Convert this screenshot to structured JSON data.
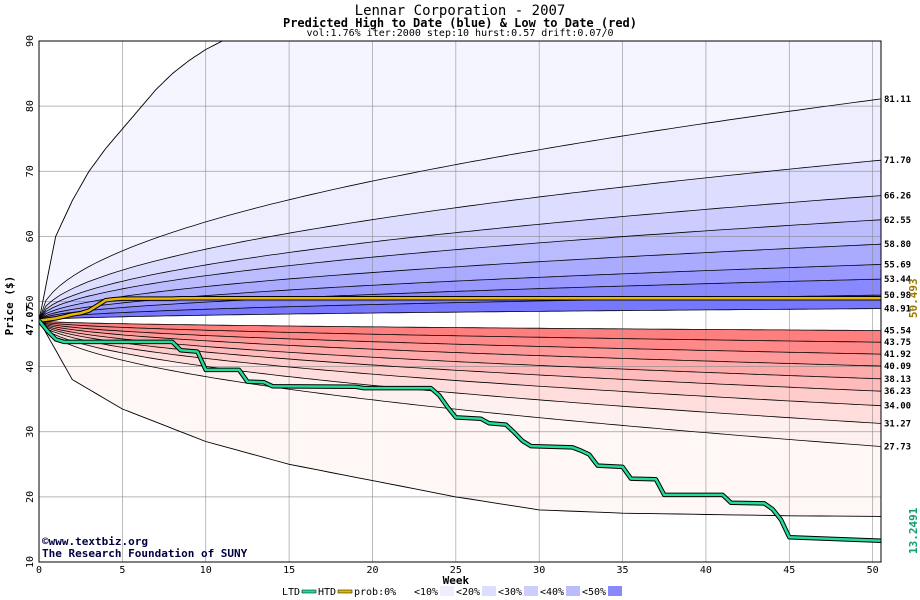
{
  "title": "Lennar Corporation - 2007",
  "subtitle": "Predicted High to Date (blue) &  Low to Date (red)",
  "params": "vol:1.76% iter:2000 step:10 hurst:0.57 drift:0.07/0",
  "credit_line1": "©www.textbiz.org",
  "credit_line2": "The Research Foundation of SUNY",
  "chart_data": {
    "type": "area",
    "xlabel": "Week",
    "ylabel": "Price ($)",
    "xlim": [
      0,
      50.5
    ],
    "ylim": [
      10,
      90
    ],
    "xticks": [
      0,
      5,
      10,
      15,
      20,
      25,
      30,
      35,
      40,
      45,
      50
    ],
    "yticks": [
      10,
      20,
      30,
      40,
      50,
      60,
      70,
      80,
      90
    ],
    "grid": true,
    "start_price": 47.07,
    "start_price_label": "47.07",
    "current_high_label": "50.493",
    "current_low_label": "13.2491",
    "upper_bands": [
      {
        "end": 81.11,
        "label": "81.11"
      },
      {
        "end": 71.7,
        "label": "71.70"
      },
      {
        "end": 66.26,
        "label": "66.26"
      },
      {
        "end": 62.55,
        "label": "62.55"
      },
      {
        "end": 58.8,
        "label": "58.80"
      },
      {
        "end": 55.69,
        "label": "55.69"
      },
      {
        "end": 53.44,
        "label": "53.44"
      },
      {
        "end": 50.98,
        "label": "50.98"
      },
      {
        "end": 48.91,
        "label": "48.91"
      }
    ],
    "lower_bands": [
      {
        "end": 45.54,
        "label": "45.54"
      },
      {
        "end": 43.75,
        "label": "43.75"
      },
      {
        "end": 41.92,
        "label": "41.92"
      },
      {
        "end": 40.09,
        "label": "40.09"
      },
      {
        "end": 38.13,
        "label": "38.13"
      },
      {
        "end": 36.23,
        "label": "36.23"
      },
      {
        "end": 34.0,
        "label": "34.00"
      },
      {
        "end": 31.27,
        "label": "31.27"
      },
      {
        "end": 27.73,
        "label": "27.73"
      }
    ],
    "extreme_high_curve": {
      "x": [
        0,
        1,
        2,
        3,
        4,
        5,
        6,
        7,
        8,
        9,
        10,
        11
      ],
      "y": [
        47.07,
        60,
        65.5,
        70,
        73.5,
        76.5,
        79.5,
        82.5,
        85,
        87,
        88.7,
        90
      ]
    },
    "extreme_low_curve": {
      "x": [
        0,
        2,
        5,
        10,
        15,
        20,
        25,
        30,
        35,
        40,
        45,
        50.5
      ],
      "y": [
        47.07,
        38,
        33.5,
        28.5,
        25,
        22.5,
        20,
        18,
        17.5,
        17.3,
        17.1,
        17
      ]
    },
    "series": [
      {
        "name": "HTD",
        "x": [
          0,
          1,
          1.5,
          2,
          2.5,
          3,
          3.5,
          4,
          4.5,
          5,
          8,
          8.5,
          50.5
        ],
        "y": [
          47.07,
          47.4,
          47.7,
          48.0,
          48.2,
          48.6,
          49.4,
          50.2,
          50.35,
          50.45,
          50.45,
          50.493,
          50.493
        ]
      },
      {
        "name": "LTD",
        "x": [
          0,
          0.5,
          1,
          1.5,
          8,
          8.5,
          9.5,
          10,
          12,
          12.5,
          13.5,
          14,
          19,
          19.5,
          23.5,
          24,
          24.5,
          25,
          26.5,
          27,
          28,
          28.5,
          29,
          29.5,
          32,
          32.5,
          33,
          33.5,
          35,
          35.5,
          37,
          37.5,
          41,
          41.5,
          43.5,
          44,
          44.5,
          45,
          50.5
        ],
        "y": [
          47.07,
          45.5,
          44.2,
          43.8,
          43.8,
          42.5,
          42.3,
          39.5,
          39.5,
          37.7,
          37.6,
          37.0,
          36.9,
          36.7,
          36.7,
          35.6,
          33.8,
          32.2,
          32.0,
          31.3,
          31.1,
          29.9,
          28.6,
          27.8,
          27.6,
          27.1,
          26.5,
          24.8,
          24.6,
          22.8,
          22.7,
          20.3,
          20.3,
          19.1,
          19.0,
          18.1,
          16.5,
          13.8,
          13.2491
        ]
      }
    ],
    "legend": {
      "placement": "bottom",
      "items": [
        "LTD",
        "HTD",
        "prob:0%",
        "<10%",
        "<20%",
        "<30%",
        "<40%",
        "<50%"
      ],
      "colors": [
        "#ffffff",
        "#eeeeff",
        "#ddddff",
        "#ccccff",
        "#bbbbff",
        "#8888ff"
      ]
    },
    "colors": {
      "upper_fills": [
        "#eeeeff",
        "#ddddff",
        "#ccccff",
        "#bbbbff",
        "#aaaaff",
        "#9999ff",
        "#8888ff",
        "#7777ff",
        "#6f6fff"
      ],
      "lower_fills": [
        "#fff0f0",
        "#ffdddd",
        "#ffcccc",
        "#ffbbbb",
        "#ffaaaa",
        "#ff9999",
        "#ff8888",
        "#ff7f7f",
        "#ff7777"
      ],
      "htd_line": "#e8b800",
      "ltd_line": "#22dd99",
      "grid": "#888888",
      "high_label": "#9a7a00",
      "low_label": "#10a070"
    }
  }
}
